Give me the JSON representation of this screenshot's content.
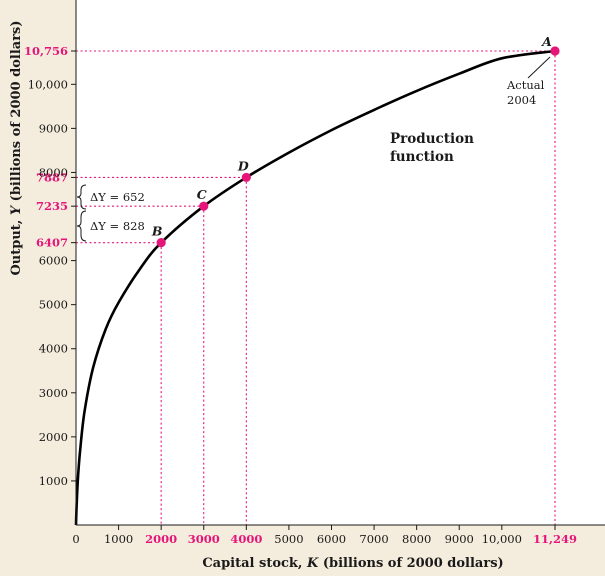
{
  "chart_data": {
    "type": "line",
    "xlabel_prefix": "Capital stock, ",
    "xlabel_var": "K",
    "xlabel_suffix": " (billions of 2000 dollars)",
    "ylabel_prefix": "Output, ",
    "ylabel_var": "Y",
    "ylabel_suffix": " (billions of 2000 dollars)",
    "xlim": [
      0,
      11500
    ],
    "ylim": [
      0,
      11000
    ],
    "x_ticks": [
      {
        "value": 0,
        "label": "0"
      },
      {
        "value": 1000,
        "label": "1000"
      },
      {
        "value": 2000,
        "label": "2000",
        "highlight": true
      },
      {
        "value": 3000,
        "label": "3000",
        "highlight": true
      },
      {
        "value": 4000,
        "label": "4000",
        "highlight": true
      },
      {
        "value": 5000,
        "label": "5000"
      },
      {
        "value": 6000,
        "label": "6000"
      },
      {
        "value": 7000,
        "label": "7000"
      },
      {
        "value": 8000,
        "label": "8000"
      },
      {
        "value": 9000,
        "label": "9000"
      },
      {
        "value": 10000,
        "label": "10,000"
      },
      {
        "value": 11249,
        "label": "11,249",
        "highlight": true
      }
    ],
    "y_ticks": [
      {
        "value": 1000,
        "label": "1000"
      },
      {
        "value": 2000,
        "label": "2000"
      },
      {
        "value": 3000,
        "label": "3000"
      },
      {
        "value": 4000,
        "label": "4000"
      },
      {
        "value": 5000,
        "label": "5000"
      },
      {
        "value": 6000,
        "label": "6000"
      },
      {
        "value": 6407,
        "label": "6407",
        "highlight": true
      },
      {
        "value": 7235,
        "label": "7235",
        "highlight": true
      },
      {
        "value": 7887,
        "label": "7887",
        "highlight": true
      },
      {
        "value": 8000,
        "label": "8000"
      },
      {
        "value": 9000,
        "label": "9000"
      },
      {
        "value": 10000,
        "label": "10,000"
      },
      {
        "value": 10756,
        "label": "10,756",
        "highlight": true
      }
    ],
    "series": [
      {
        "function": "production",
        "x": [
          0,
          20,
          50,
          100,
          200,
          400,
          700,
          1000,
          1500,
          2000,
          3000,
          4000,
          5000,
          6000,
          7000,
          8000,
          9000,
          10000,
          11249
        ],
        "y": [
          0,
          580,
          1120,
          1730,
          2570,
          3560,
          4450,
          5050,
          5810,
          6407,
          7235,
          7887,
          8450,
          8960,
          9420,
          9850,
          10240,
          10590,
          10756
        ]
      }
    ],
    "points": [
      {
        "label": "A",
        "x": 11249,
        "y": 10756
      },
      {
        "label": "B",
        "x": 2000,
        "y": 6407
      },
      {
        "label": "C",
        "x": 3000,
        "y": 7235
      },
      {
        "label": "D",
        "x": 4000,
        "y": 7887
      }
    ],
    "annotations": {
      "curve_label_line1": "Production",
      "curve_label_line2": "function",
      "actual_line1": "Actual",
      "actual_line2": "2004",
      "delta_upper": "ΔY = 652",
      "delta_lower": "ΔY = 828"
    },
    "colors": {
      "background": "#f4ecdc",
      "plot_background": "#ffffff",
      "curve": "#000000",
      "highlight": "#e6157a",
      "dotted": "#e6157a"
    }
  }
}
